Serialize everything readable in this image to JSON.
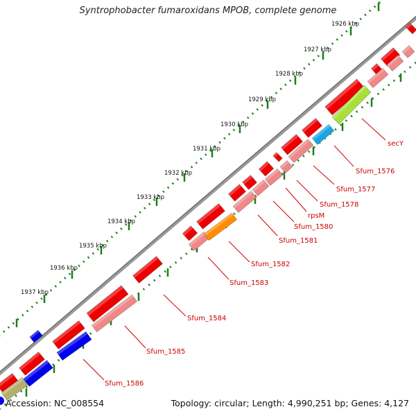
{
  "title": "Syntrophobacter fumaroxidans MPOB, complete genome",
  "footer": {
    "accession": "Accession: NC_008554",
    "summary": "Topology: circular; Length: 4,990,251 bp; Genes: 4,127"
  },
  "colors": {
    "backbone": "#888888",
    "tick": "#1a7f1a",
    "gene_forward": "#ee0000",
    "gene_reverse": "#0000ee",
    "cds_feature": "#f08888",
    "label": "#cc0000",
    "highlight_cyan": "#1aa6e6",
    "highlight_lime": "#a8e03a",
    "highlight_orange": "#ff8c00",
    "highlight_olive": "#b4b070"
  },
  "scale_labels": [
    {
      "text": "1926 kbp"
    },
    {
      "text": "1927 kbp"
    },
    {
      "text": "1928 kbp"
    },
    {
      "text": "1929 kbp"
    },
    {
      "text": "1930 kbp"
    },
    {
      "text": "1931 kbp"
    },
    {
      "text": "1932 kbp"
    },
    {
      "text": "1933 kbp"
    },
    {
      "text": "1934 kbp"
    },
    {
      "text": "1935 kbp"
    },
    {
      "text": "1936 kbp"
    },
    {
      "text": "1937 kbp"
    }
  ],
  "gene_labels": [
    {
      "text": "secY"
    },
    {
      "text": "Sfum_1576"
    },
    {
      "text": "Sfum_1577"
    },
    {
      "text": "Sfum_1578"
    },
    {
      "text": "rpsM"
    },
    {
      "text": "Sfum_1580"
    },
    {
      "text": "Sfum_1581"
    },
    {
      "text": "Sfum_1582"
    },
    {
      "text": "Sfum_1583"
    },
    {
      "text": "Sfum_1584"
    },
    {
      "text": "Sfum_1585"
    },
    {
      "text": "Sfum_1586"
    }
  ]
}
